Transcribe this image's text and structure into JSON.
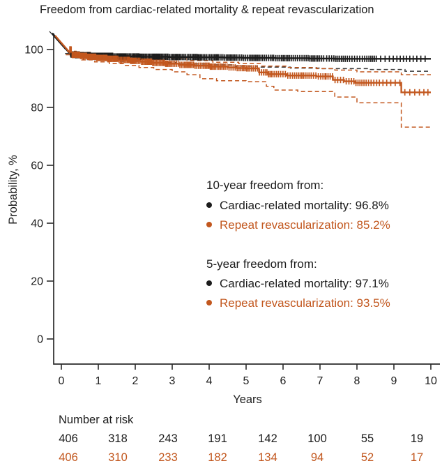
{
  "chart_data": {
    "type": "line",
    "subtype": "kaplan-meier",
    "title": "Freedom from cardiac-related mortality & repeat revascularization",
    "xlabel": "Years",
    "ylabel": "Probability, %",
    "xlim": [
      0,
      10
    ],
    "ylim": [
      0,
      100
    ],
    "xticks": [
      0,
      1,
      2,
      3,
      4,
      5,
      6,
      7,
      8,
      9,
      10
    ],
    "yticks": [
      0,
      20,
      40,
      60,
      80,
      100
    ],
    "grid": false,
    "y_axis_break_at_top": true,
    "legend_position": "center-right",
    "series": [
      {
        "name": "Cardiac-related mortality",
        "color": "#1c1c1c",
        "style": "solid",
        "points": [
          [
            0,
            100
          ],
          [
            0.25,
            98.3
          ],
          [
            0.5,
            98.0
          ],
          [
            0.8,
            97.8
          ],
          [
            1.4,
            97.6
          ],
          [
            2.1,
            97.5
          ],
          [
            2.9,
            97.4
          ],
          [
            3.7,
            97.3
          ],
          [
            4.4,
            97.2
          ],
          [
            4.9,
            97.1
          ],
          [
            5.8,
            97.0
          ],
          [
            6.7,
            96.9
          ],
          [
            7.4,
            96.8
          ],
          [
            10,
            96.8
          ]
        ]
      },
      {
        "name": "Cardiac-related mortality 95% CI lower",
        "color": "#3a3a3a",
        "style": "dashed",
        "points": [
          [
            0,
            100
          ],
          [
            0.1,
            98.6
          ],
          [
            0.2,
            97.8
          ],
          [
            0.35,
            97.1
          ],
          [
            0.6,
            96.5
          ],
          [
            1.0,
            96.2
          ],
          [
            1.6,
            95.9
          ],
          [
            2.3,
            95.5
          ],
          [
            3.1,
            95.0
          ],
          [
            4.0,
            94.7
          ],
          [
            4.7,
            94.3
          ],
          [
            5.3,
            93.9
          ],
          [
            6.2,
            93.6
          ],
          [
            7.0,
            93.4
          ],
          [
            8.3,
            93.1
          ],
          [
            9.3,
            92.5
          ],
          [
            10,
            92.5
          ]
        ]
      },
      {
        "name": "Repeat revascularization",
        "color": "#c2571e",
        "style": "solid",
        "points": [
          [
            0,
            100
          ],
          [
            0.28,
            98.2
          ],
          [
            0.5,
            97.8
          ],
          [
            0.7,
            97.5
          ],
          [
            0.95,
            97.1
          ],
          [
            1.25,
            96.8
          ],
          [
            1.55,
            96.4
          ],
          [
            1.85,
            96.1
          ],
          [
            2.15,
            95.8
          ],
          [
            2.45,
            95.4
          ],
          [
            2.8,
            95.1
          ],
          [
            3.2,
            94.7
          ],
          [
            3.6,
            94.4
          ],
          [
            4.0,
            94.1
          ],
          [
            4.5,
            93.8
          ],
          [
            4.75,
            93.6
          ],
          [
            5.0,
            93.5
          ],
          [
            5.35,
            92.1
          ],
          [
            5.6,
            91.5
          ],
          [
            6.1,
            91.0
          ],
          [
            6.9,
            90.7
          ],
          [
            7.35,
            89.5
          ],
          [
            7.65,
            89.0
          ],
          [
            7.95,
            88.5
          ],
          [
            9.2,
            85.2
          ],
          [
            10,
            85.2
          ]
        ]
      },
      {
        "name": "Repeat revascularization 95% CI upper",
        "color": "#c2571e",
        "style": "dashed",
        "points": [
          [
            0,
            100
          ],
          [
            0.15,
            99.4
          ],
          [
            0.4,
            99.0
          ],
          [
            0.8,
            98.5
          ],
          [
            1.4,
            97.9
          ],
          [
            2.0,
            97.4
          ],
          [
            2.7,
            96.8
          ],
          [
            3.4,
            96.2
          ],
          [
            4.1,
            95.6
          ],
          [
            4.8,
            95.1
          ],
          [
            5.4,
            94.3
          ],
          [
            6.1,
            93.8
          ],
          [
            6.9,
            93.4
          ],
          [
            7.4,
            92.9
          ],
          [
            8.0,
            92.3
          ],
          [
            9.2,
            91.3
          ],
          [
            10,
            91.3
          ]
        ]
      },
      {
        "name": "Repeat revascularization 95% CI lower",
        "color": "#c2571e",
        "style": "dashed",
        "points": [
          [
            0,
            100
          ],
          [
            0.12,
            98.2
          ],
          [
            0.3,
            97.2
          ],
          [
            0.55,
            96.4
          ],
          [
            0.9,
            95.7
          ],
          [
            1.3,
            95.1
          ],
          [
            1.7,
            94.5
          ],
          [
            2.1,
            93.8
          ],
          [
            2.5,
            93.1
          ],
          [
            3.0,
            92.3
          ],
          [
            3.4,
            91.3
          ],
          [
            3.75,
            89.9
          ],
          [
            4.2,
            89.2
          ],
          [
            5.0,
            88.9
          ],
          [
            5.55,
            87.3
          ],
          [
            5.75,
            86.0
          ],
          [
            6.4,
            85.5
          ],
          [
            7.4,
            83.6
          ],
          [
            8.0,
            81.6
          ],
          [
            9.2,
            73.2
          ],
          [
            10,
            73.2
          ]
        ]
      }
    ],
    "censor_mark_density": {
      "black": [
        [
          0.22,
          1.43,
          56
        ],
        [
          1.43,
          2.86,
          46
        ],
        [
          2.86,
          4.29,
          38
        ],
        [
          4.29,
          5.71,
          32
        ],
        [
          5.71,
          7.14,
          28
        ],
        [
          7.14,
          8.57,
          24
        ],
        [
          8.57,
          9.93,
          13
        ]
      ],
      "orange": [
        [
          0.22,
          1.43,
          53
        ],
        [
          1.43,
          2.86,
          44
        ],
        [
          2.86,
          4.29,
          36
        ],
        [
          4.29,
          5.71,
          30
        ],
        [
          5.71,
          7.14,
          26
        ],
        [
          7.14,
          8.57,
          22
        ],
        [
          8.57,
          9.93,
          12
        ]
      ]
    }
  },
  "legend": {
    "groups": [
      {
        "title": "10-year freedom from:",
        "items": [
          {
            "label": "Cardiac-related mortality: 96.8%",
            "color": "#1c1c1c"
          },
          {
            "label": "Repeat revascularization: 85.2%",
            "color": "#c2571e"
          }
        ]
      },
      {
        "title": "5-year freedom from:",
        "items": [
          {
            "label": "Cardiac-related mortality: 97.1%",
            "color": "#1c1c1c"
          },
          {
            "label": "Repeat revascularization: 93.5%",
            "color": "#c2571e"
          }
        ]
      }
    ]
  },
  "at_risk": {
    "label": "Number at risk",
    "rows": [
      {
        "series": "Cardiac-related mortality",
        "color": "#1c1c1c",
        "values": [
          406,
          318,
          243,
          191,
          142,
          100,
          55,
          19
        ]
      },
      {
        "series": "Repeat revascularization",
        "color": "#c2571e",
        "values": [
          406,
          310,
          233,
          182,
          134,
          94,
          52,
          17
        ]
      }
    ]
  },
  "colors": {
    "black": "#1c1c1c",
    "orange": "#c2571e",
    "axis": "#2a2a2a",
    "background": "#ffffff"
  }
}
